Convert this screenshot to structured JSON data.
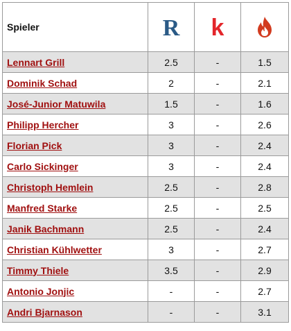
{
  "header": {
    "player_col": "Spieler",
    "source_icons": [
      "r-logo-icon",
      "k-logo-icon",
      "flame-logo-icon"
    ],
    "colors": {
      "r": "#2a5a86",
      "k": "#e3262b",
      "flame": "#d23b1f"
    }
  },
  "rows": [
    {
      "name": "Lennart Grill",
      "r": "2.5",
      "k": "-",
      "f": "1.5"
    },
    {
      "name": "Dominik Schad",
      "r": "2",
      "k": "-",
      "f": "2.1"
    },
    {
      "name": "José-Junior Matuwila",
      "r": "1.5",
      "k": "-",
      "f": "1.6"
    },
    {
      "name": "Philipp Hercher",
      "r": "3",
      "k": "-",
      "f": "2.6"
    },
    {
      "name": "Florian Pick",
      "r": "3",
      "k": "-",
      "f": "2.4"
    },
    {
      "name": "Carlo Sickinger",
      "r": "3",
      "k": "-",
      "f": "2.4"
    },
    {
      "name": "Christoph Hemlein",
      "r": "2.5",
      "k": "-",
      "f": "2.8"
    },
    {
      "name": "Manfred Starke",
      "r": "2.5",
      "k": "-",
      "f": "2.5"
    },
    {
      "name": "Janik Bachmann",
      "r": "2.5",
      "k": "-",
      "f": "2.4"
    },
    {
      "name": "Christian Kühlwetter",
      "r": "3",
      "k": "-",
      "f": "2.7"
    },
    {
      "name": "Timmy Thiele",
      "r": "3.5",
      "k": "-",
      "f": "2.9"
    },
    {
      "name": "Antonio Jonjic",
      "r": "-",
      "k": "-",
      "f": "2.7"
    },
    {
      "name": "Andri Bjarnason",
      "r": "-",
      "k": "-",
      "f": "3.1"
    }
  ]
}
